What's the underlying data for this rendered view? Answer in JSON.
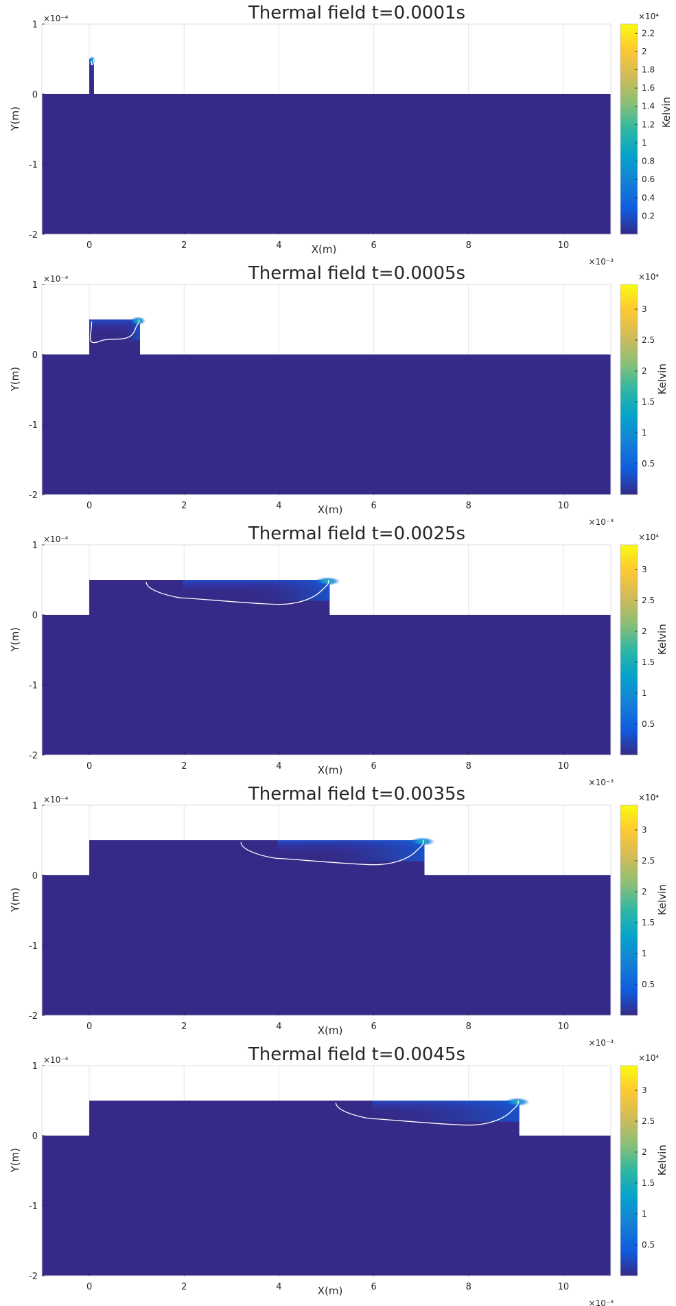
{
  "chart_data": [
    {
      "type": "heatmap",
      "title": "Thermal field t=0.0001s",
      "xlabel": "X(m)",
      "ylabel": "Y(m)",
      "colorbar_label": "Kelvin",
      "x_exponent": "×10⁻³",
      "y_exponent": "×10⁻⁴",
      "cbar_exponent": "×10⁴",
      "xlim": [
        -0.001,
        0.011
      ],
      "ylim": [
        -0.0002,
        0.0001
      ],
      "xticks": [
        0,
        2,
        4,
        6,
        8,
        10
      ],
      "yticks": [
        -2,
        -1,
        0,
        1
      ],
      "cbar_ticks": [
        0.2,
        0.4,
        0.6,
        0.8,
        1,
        1.2,
        1.4,
        1.6,
        1.8,
        2,
        2.2
      ],
      "cbar_range": [
        0,
        2.3
      ],
      "deposit_x_end": 0.0001,
      "deposit_top": 5e-05,
      "melt_pool": [
        [
          4e-05,
          4.7e-05
        ],
        [
          5e-05,
          4.2e-05
        ],
        [
          8e-05,
          4.3e-05
        ],
        [
          0.0001,
          5e-05
        ]
      ],
      "grid": true
    },
    {
      "type": "heatmap",
      "title": "Thermal field t=0.0005s",
      "xlabel": "X(m)",
      "ylabel": "Y(m)",
      "colorbar_label": "Kelvin",
      "x_exponent": "×10⁻³",
      "y_exponent": "×10⁻⁴",
      "cbar_exponent": "×10⁴",
      "xlim": [
        -0.001,
        0.011
      ],
      "ylim": [
        -0.0002,
        0.0001
      ],
      "xticks": [
        0,
        2,
        4,
        6,
        8,
        10
      ],
      "yticks": [
        -2,
        -1,
        0,
        1
      ],
      "cbar_ticks": [
        0.5,
        1,
        1.5,
        2,
        2.5,
        3
      ],
      "cbar_range": [
        0,
        3.4
      ],
      "deposit_x_end": 0.00107,
      "deposit_top": 5e-05,
      "melt_pool": [
        [
          5e-05,
          4.7e-05
        ],
        [
          0.0001,
          1.7e-05
        ],
        [
          0.0006,
          2.2e-05
        ],
        [
          0.00095,
          3.5e-05
        ],
        [
          0.00105,
          5e-05
        ]
      ],
      "grid": true
    },
    {
      "type": "heatmap",
      "title": "Thermal field t=0.0025s",
      "xlabel": "X(m)",
      "ylabel": "Y(m)",
      "colorbar_label": "Kelvin",
      "x_exponent": "×10⁻³",
      "y_exponent": "×10⁻⁴",
      "cbar_exponent": "×10⁴",
      "xlim": [
        -0.001,
        0.011
      ],
      "ylim": [
        -0.0002,
        0.0001
      ],
      "xticks": [
        0,
        2,
        4,
        6,
        8,
        10
      ],
      "yticks": [
        -2,
        -1,
        0,
        1
      ],
      "cbar_ticks": [
        0.5,
        1,
        1.5,
        2,
        2.5,
        3
      ],
      "cbar_range": [
        0,
        3.4
      ],
      "deposit_x_end": 0.00507,
      "deposit_top": 5e-05,
      "melt_pool": [
        [
          0.0012,
          4.7e-05
        ],
        [
          0.002,
          2.4e-05
        ],
        [
          0.004,
          1.5e-05
        ],
        [
          0.0047,
          2.2e-05
        ],
        [
          0.00505,
          5e-05
        ]
      ],
      "grid": true
    },
    {
      "type": "heatmap",
      "title": "Thermal field t=0.0035s",
      "xlabel": "X(m)",
      "ylabel": "Y(m)",
      "colorbar_label": "Kelvin",
      "x_exponent": "×10⁻³",
      "y_exponent": "×10⁻⁴",
      "cbar_exponent": "×10⁴",
      "xlim": [
        -0.001,
        0.011
      ],
      "ylim": [
        -0.0002,
        0.0001
      ],
      "xticks": [
        0,
        2,
        4,
        6,
        8,
        10
      ],
      "yticks": [
        -2,
        -1,
        0,
        1
      ],
      "cbar_ticks": [
        0.5,
        1,
        1.5,
        2,
        2.5,
        3
      ],
      "cbar_range": [
        0,
        3.4
      ],
      "deposit_x_end": 0.00707,
      "deposit_top": 5e-05,
      "melt_pool": [
        [
          0.0032,
          4.7e-05
        ],
        [
          0.004,
          2.4e-05
        ],
        [
          0.006,
          1.5e-05
        ],
        [
          0.0067,
          2.2e-05
        ],
        [
          0.00705,
          5e-05
        ]
      ],
      "grid": true
    },
    {
      "type": "heatmap",
      "title": "Thermal field t=0.0045s",
      "xlabel": "X(m)",
      "ylabel": "Y(m)",
      "colorbar_label": "Kelvin",
      "x_exponent": "×10⁻³",
      "y_exponent": "×10⁻⁴",
      "cbar_exponent": "×10⁴",
      "xlim": [
        -0.001,
        0.011
      ],
      "ylim": [
        -0.0002,
        0.0001
      ],
      "xticks": [
        0,
        2,
        4,
        6,
        8,
        10
      ],
      "yticks": [
        -2,
        -1,
        0,
        1
      ],
      "cbar_ticks": [
        0.5,
        1,
        1.5,
        2,
        2.5,
        3
      ],
      "cbar_range": [
        0,
        3.4
      ],
      "deposit_x_end": 0.00907,
      "deposit_top": 5e-05,
      "melt_pool": [
        [
          0.0052,
          4.7e-05
        ],
        [
          0.006,
          2.4e-05
        ],
        [
          0.008,
          1.5e-05
        ],
        [
          0.0087,
          2.2e-05
        ],
        [
          0.00905,
          5e-05
        ]
      ],
      "grid": true
    }
  ]
}
